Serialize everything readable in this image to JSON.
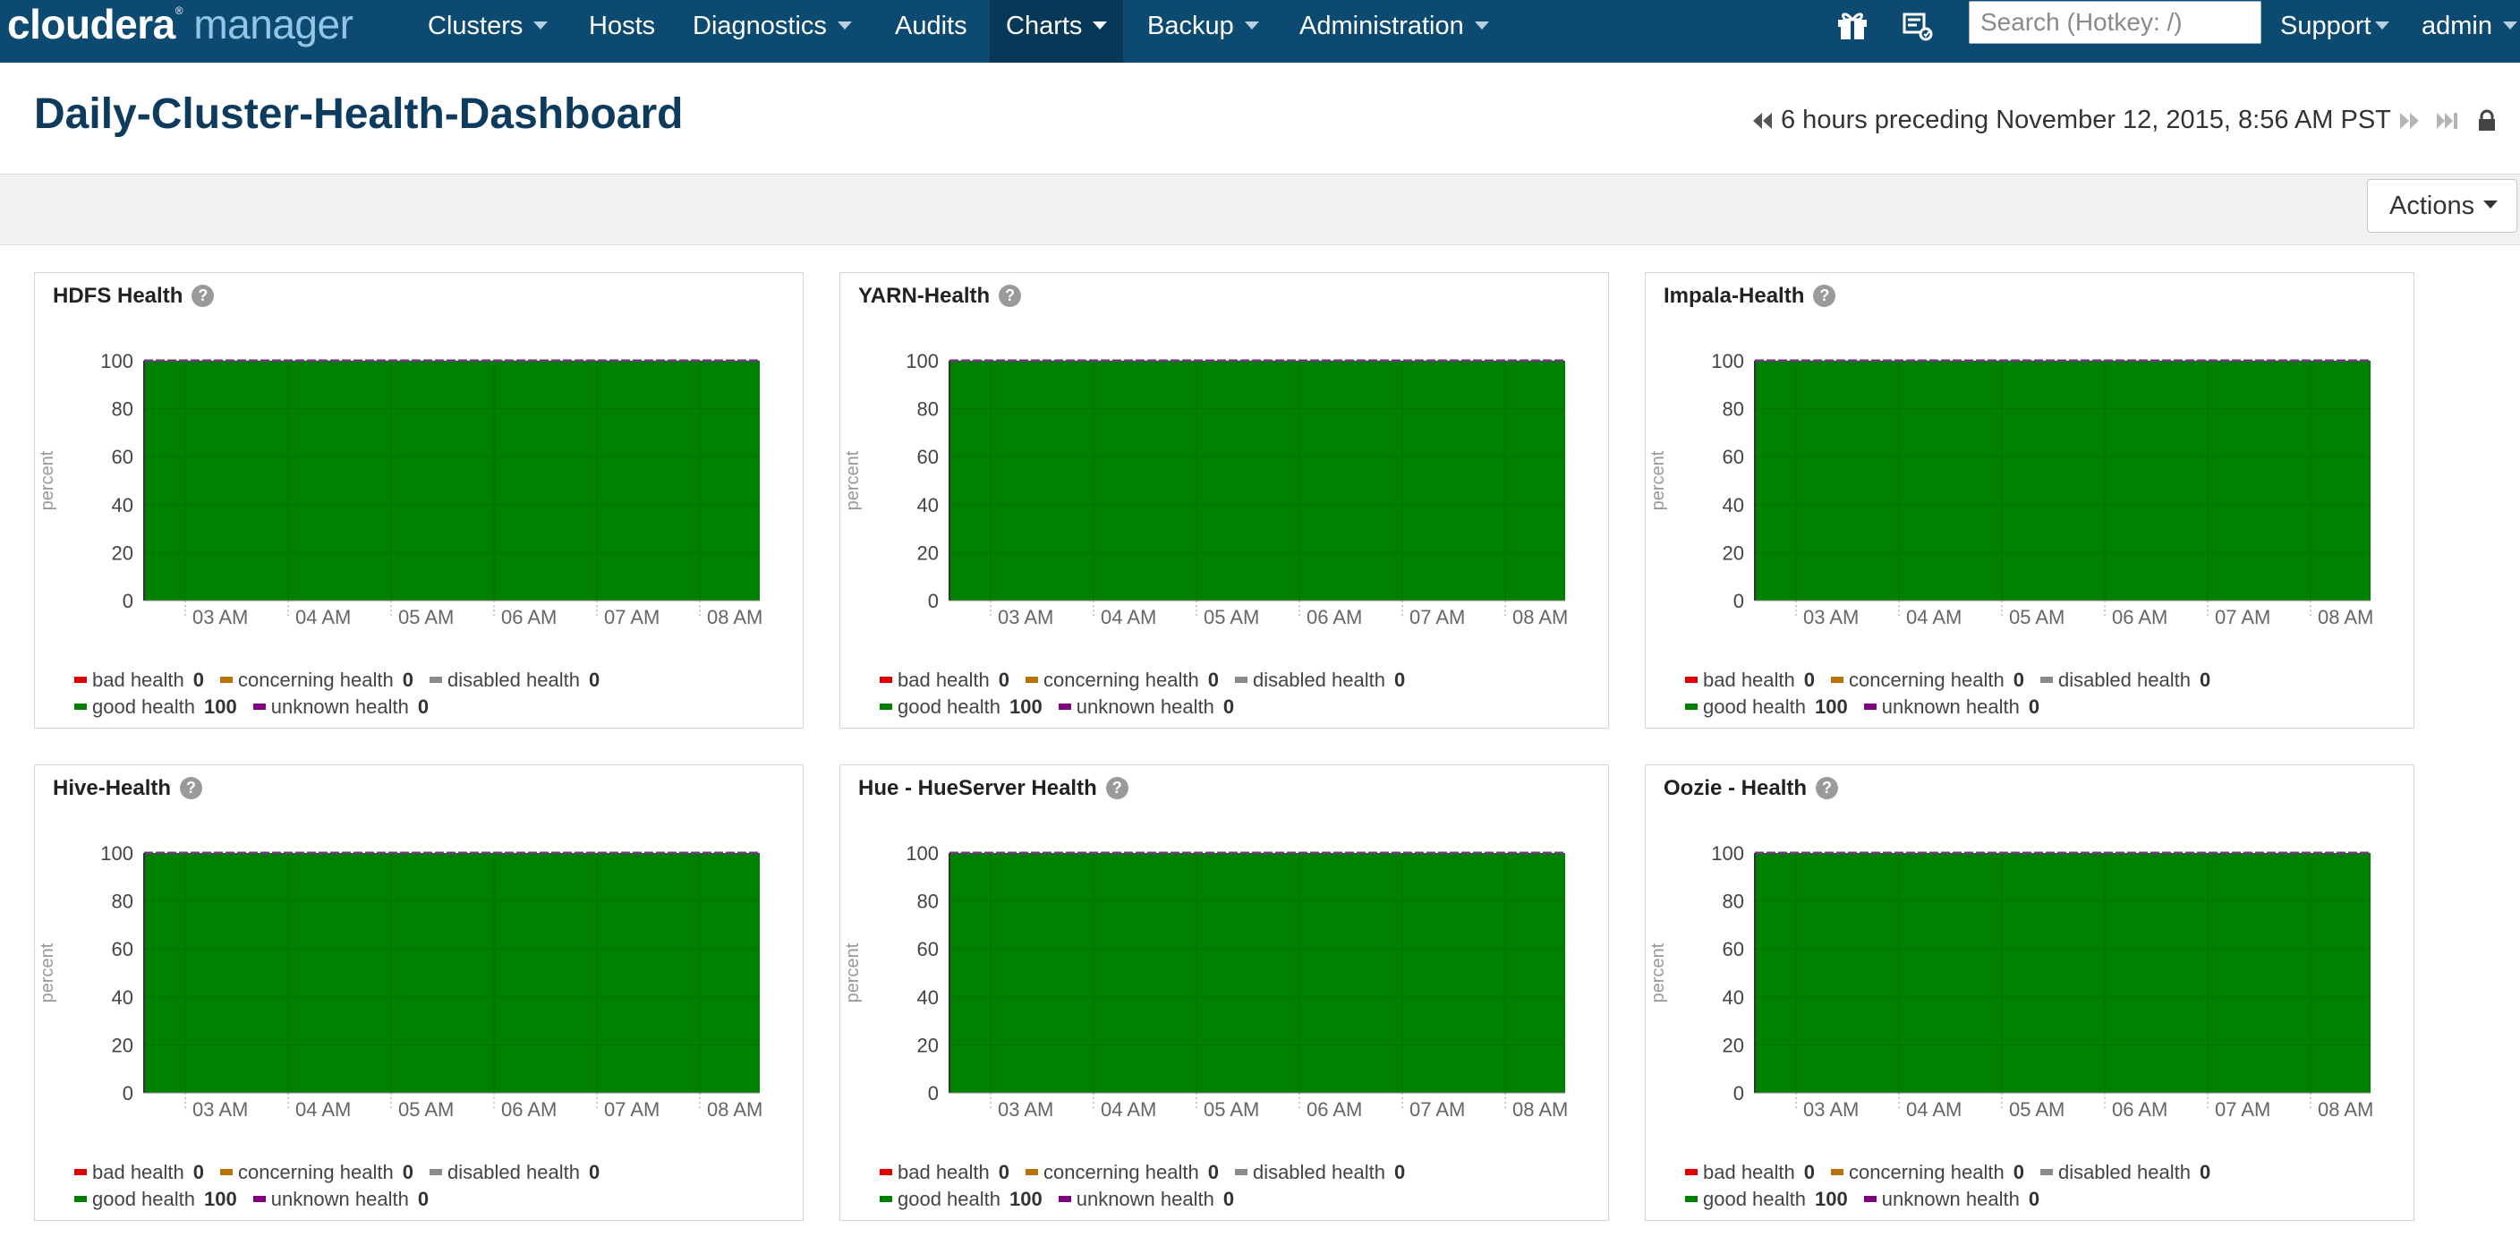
{
  "app": {
    "logo_primary": "cloudera",
    "logo_secondary": "manager"
  },
  "nav": {
    "items": [
      {
        "label": "Clusters",
        "dropdown": true,
        "active": false
      },
      {
        "label": "Hosts",
        "dropdown": false,
        "active": false
      },
      {
        "label": "Diagnostics",
        "dropdown": true,
        "active": false
      },
      {
        "label": "Audits",
        "dropdown": false,
        "active": false
      },
      {
        "label": "Charts",
        "dropdown": true,
        "active": true
      },
      {
        "label": "Backup",
        "dropdown": true,
        "active": false
      },
      {
        "label": "Administration",
        "dropdown": true,
        "active": false
      }
    ],
    "icons": [
      "gift-icon",
      "parcel-icon"
    ],
    "search_placeholder": "Search (Hotkey: /)",
    "support_label": "Support",
    "user_label": "admin"
  },
  "page": {
    "title": "Daily-Cluster-Health-Dashboard",
    "time_range": "6 hours preceding November 12, 2015, 8:56 AM PST",
    "actions_label": "Actions"
  },
  "colors": {
    "navbar": "#0c4a72",
    "good": "#008000",
    "bad": "#e00000",
    "concerning": "#b8720a",
    "disabled": "#8a8a8a",
    "unknown": "#800080"
  },
  "legend_labels": {
    "bad": "bad health",
    "concerning": "concerning health",
    "disabled": "disabled health",
    "good": "good health",
    "unknown": "unknown health"
  },
  "charts": [
    {
      "title": "HDFS Health",
      "values": {
        "bad": "0",
        "concerning": "0",
        "disabled": "0",
        "good": "100",
        "unknown": "0"
      }
    },
    {
      "title": "YARN-Health",
      "values": {
        "bad": "0",
        "concerning": "0",
        "disabled": "0",
        "good": "100",
        "unknown": "0"
      }
    },
    {
      "title": "Impala-Health",
      "values": {
        "bad": "0",
        "concerning": "0",
        "disabled": "0",
        "good": "100",
        "unknown": "0"
      }
    },
    {
      "title": "Hive-Health",
      "values": {
        "bad": "0",
        "concerning": "0",
        "disabled": "0",
        "good": "100",
        "unknown": "0"
      }
    },
    {
      "title": "Hue - HueServer Health",
      "values": {
        "bad": "0",
        "concerning": "0",
        "disabled": "0",
        "good": "100",
        "unknown": "0"
      }
    },
    {
      "title": "Oozie - Health",
      "values": {
        "bad": "0",
        "concerning": "0",
        "disabled": "0",
        "good": "100",
        "unknown": "0"
      }
    }
  ],
  "chart_data": [
    {
      "type": "area",
      "title": "HDFS Health",
      "ylabel": "percent",
      "ylim": [
        0,
        100
      ],
      "yticks": [
        0,
        20,
        40,
        60,
        80,
        100
      ],
      "x": [
        "03 AM",
        "04 AM",
        "05 AM",
        "06 AM",
        "07 AM",
        "08 AM"
      ],
      "series": [
        {
          "name": "good health",
          "values": [
            100,
            100,
            100,
            100,
            100,
            100
          ]
        }
      ],
      "grid": true
    },
    {
      "type": "area",
      "title": "YARN-Health",
      "ylabel": "percent",
      "ylim": [
        0,
        100
      ],
      "yticks": [
        0,
        20,
        40,
        60,
        80,
        100
      ],
      "x": [
        "03 AM",
        "04 AM",
        "05 AM",
        "06 AM",
        "07 AM",
        "08 AM"
      ],
      "series": [
        {
          "name": "good health",
          "values": [
            100,
            100,
            100,
            100,
            100,
            100
          ]
        }
      ],
      "grid": true
    },
    {
      "type": "area",
      "title": "Impala-Health",
      "ylabel": "percent",
      "ylim": [
        0,
        100
      ],
      "yticks": [
        0,
        20,
        40,
        60,
        80,
        100
      ],
      "x": [
        "03 AM",
        "04 AM",
        "05 AM",
        "06 AM",
        "07 AM",
        "08 AM"
      ],
      "series": [
        {
          "name": "good health",
          "values": [
            100,
            100,
            100,
            100,
            100,
            100
          ]
        }
      ],
      "grid": true
    },
    {
      "type": "area",
      "title": "Hive-Health",
      "ylabel": "percent",
      "ylim": [
        0,
        100
      ],
      "yticks": [
        0,
        20,
        40,
        60,
        80,
        100
      ],
      "x": [
        "03 AM",
        "04 AM",
        "05 AM",
        "06 AM",
        "07 AM",
        "08 AM"
      ],
      "series": [
        {
          "name": "good health",
          "values": [
            100,
            100,
            100,
            100,
            100,
            100
          ]
        }
      ],
      "grid": true
    },
    {
      "type": "area",
      "title": "Hue - HueServer Health",
      "ylabel": "percent",
      "ylim": [
        0,
        100
      ],
      "yticks": [
        0,
        20,
        40,
        60,
        80,
        100
      ],
      "x": [
        "03 AM",
        "04 AM",
        "05 AM",
        "06 AM",
        "07 AM",
        "08 AM"
      ],
      "series": [
        {
          "name": "good health",
          "values": [
            100,
            100,
            100,
            100,
            100,
            100
          ]
        }
      ],
      "grid": true
    },
    {
      "type": "area",
      "title": "Oozie - Health",
      "ylabel": "percent",
      "ylim": [
        0,
        100
      ],
      "yticks": [
        0,
        20,
        40,
        60,
        80,
        100
      ],
      "x": [
        "03 AM",
        "04 AM",
        "05 AM",
        "06 AM",
        "07 AM",
        "08 AM"
      ],
      "series": [
        {
          "name": "good health",
          "values": [
            100,
            100,
            100,
            100,
            100,
            100
          ]
        }
      ],
      "grid": true
    }
  ]
}
